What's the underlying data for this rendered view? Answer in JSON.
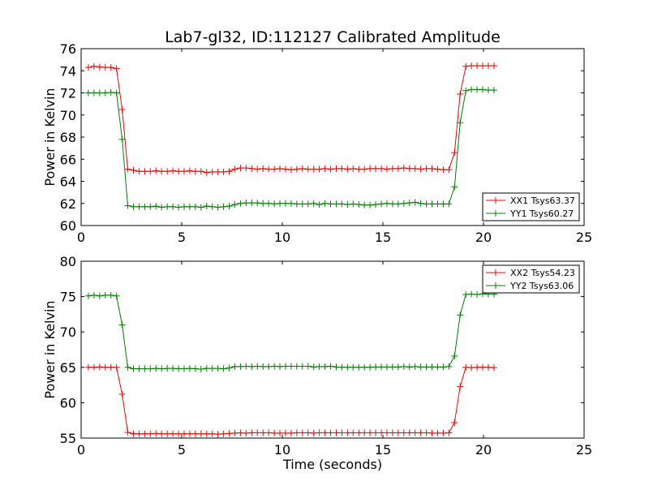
{
  "chart_data": [
    {
      "type": "line",
      "title": "Lab7-gl32, ID:112127 Calibrated Amplitude",
      "xlabel": "",
      "ylabel": "Power in Kelvin",
      "xlim": [
        0,
        25
      ],
      "ylim": [
        60,
        76
      ],
      "xticks": [
        "0",
        "5",
        "10",
        "15",
        "20",
        "25"
      ],
      "yticks": [
        "60",
        "62",
        "64",
        "66",
        "68",
        "70",
        "72",
        "74",
        "76"
      ],
      "grid": false,
      "legend_position": "lower-right",
      "x": [
        0.36,
        0.64,
        0.92,
        1.2,
        1.48,
        1.76,
        2.04,
        2.32,
        2.6,
        2.88,
        3.16,
        3.44,
        3.72,
        4.0,
        4.28,
        4.56,
        4.84,
        5.12,
        5.4,
        5.68,
        5.96,
        6.24,
        6.52,
        6.8,
        7.08,
        7.36,
        7.64,
        7.92,
        8.2,
        8.48,
        8.76,
        9.04,
        9.32,
        9.6,
        9.88,
        10.16,
        10.44,
        10.72,
        11.0,
        11.28,
        11.56,
        11.84,
        12.12,
        12.4,
        12.68,
        12.96,
        13.24,
        13.52,
        13.8,
        14.08,
        14.36,
        14.64,
        14.92,
        15.2,
        15.48,
        15.76,
        16.04,
        16.32,
        16.6,
        16.88,
        17.16,
        17.44,
        17.72,
        18.0,
        18.28,
        18.56,
        18.84,
        19.12,
        19.4,
        19.68,
        19.96,
        20.24,
        20.52
      ],
      "series": [
        {
          "name": "XX1 Tsys63.37",
          "color": "#ff0000",
          "values": [
            74.3,
            74.4,
            74.35,
            74.3,
            74.3,
            74.2,
            70.5,
            65.1,
            65.0,
            64.9,
            64.9,
            64.9,
            64.95,
            64.9,
            64.9,
            64.95,
            64.9,
            64.9,
            64.95,
            64.9,
            64.9,
            64.8,
            64.85,
            64.85,
            64.85,
            64.9,
            65.1,
            65.2,
            65.2,
            65.15,
            65.1,
            65.15,
            65.1,
            65.1,
            65.15,
            65.1,
            65.05,
            65.1,
            65.15,
            65.1,
            65.1,
            65.1,
            65.15,
            65.1,
            65.15,
            65.15,
            65.1,
            65.15,
            65.1,
            65.1,
            65.15,
            65.15,
            65.15,
            65.1,
            65.15,
            65.15,
            65.2,
            65.15,
            65.15,
            65.1,
            65.15,
            65.15,
            65.1,
            65.05,
            65.05,
            66.6,
            71.9,
            74.4,
            74.45,
            74.45,
            74.45,
            74.45,
            74.45
          ]
        },
        {
          "name": "YY1 Tsys60.27",
          "color": "#008000",
          "values": [
            72.0,
            72.0,
            72.0,
            72.0,
            72.05,
            72.0,
            67.8,
            61.8,
            61.7,
            61.7,
            61.7,
            61.7,
            61.75,
            61.65,
            61.7,
            61.7,
            61.65,
            61.7,
            61.7,
            61.7,
            61.65,
            61.75,
            61.7,
            61.65,
            61.7,
            61.75,
            61.9,
            62.0,
            62.05,
            62.05,
            62.05,
            62.0,
            62.0,
            61.95,
            62.0,
            62.0,
            62.0,
            61.95,
            61.95,
            61.95,
            62.0,
            61.9,
            62.0,
            61.95,
            61.95,
            61.95,
            61.9,
            61.95,
            61.9,
            61.85,
            61.85,
            61.9,
            61.95,
            62.0,
            61.95,
            61.95,
            62.0,
            62.05,
            62.1,
            62.0,
            61.95,
            61.95,
            61.95,
            61.95,
            61.95,
            63.5,
            69.3,
            72.2,
            72.3,
            72.3,
            72.3,
            72.25,
            72.25
          ]
        }
      ]
    },
    {
      "type": "line",
      "title": "",
      "xlabel": "Time (seconds)",
      "ylabel": "Power in Kelvin",
      "xlim": [
        0,
        25
      ],
      "ylim": [
        55,
        80
      ],
      "xticks": [
        "0",
        "5",
        "10",
        "15",
        "20",
        "25"
      ],
      "yticks": [
        "55",
        "60",
        "65",
        "70",
        "75",
        "80"
      ],
      "grid": false,
      "legend_position": "upper-right",
      "x": [
        0.36,
        0.64,
        0.92,
        1.2,
        1.48,
        1.76,
        2.04,
        2.32,
        2.6,
        2.88,
        3.16,
        3.44,
        3.72,
        4.0,
        4.28,
        4.56,
        4.84,
        5.12,
        5.4,
        5.68,
        5.96,
        6.24,
        6.52,
        6.8,
        7.08,
        7.36,
        7.64,
        7.92,
        8.2,
        8.48,
        8.76,
        9.04,
        9.32,
        9.6,
        9.88,
        10.16,
        10.44,
        10.72,
        11.0,
        11.28,
        11.56,
        11.84,
        12.12,
        12.4,
        12.68,
        12.96,
        13.24,
        13.52,
        13.8,
        14.08,
        14.36,
        14.64,
        14.92,
        15.2,
        15.48,
        15.76,
        16.04,
        16.32,
        16.6,
        16.88,
        17.16,
        17.44,
        17.72,
        18.0,
        18.28,
        18.56,
        18.84,
        19.12,
        19.4,
        19.68,
        19.96,
        20.24,
        20.52
      ],
      "series": [
        {
          "name": "XX2 Tsys54.23",
          "color": "#ff0000",
          "values": [
            65.0,
            65.0,
            65.05,
            65.0,
            65.0,
            65.0,
            61.2,
            55.8,
            55.6,
            55.6,
            55.6,
            55.6,
            55.65,
            55.6,
            55.6,
            55.6,
            55.6,
            55.6,
            55.6,
            55.6,
            55.6,
            55.6,
            55.6,
            55.55,
            55.6,
            55.65,
            55.7,
            55.75,
            55.7,
            55.75,
            55.75,
            55.75,
            55.75,
            55.7,
            55.7,
            55.7,
            55.7,
            55.75,
            55.75,
            55.75,
            55.7,
            55.75,
            55.75,
            55.75,
            55.75,
            55.75,
            55.75,
            55.75,
            55.75,
            55.75,
            55.75,
            55.75,
            55.75,
            55.75,
            55.75,
            55.75,
            55.75,
            55.75,
            55.75,
            55.75,
            55.75,
            55.7,
            55.7,
            55.7,
            55.75,
            57.2,
            62.3,
            65.0,
            64.95,
            65.0,
            65.0,
            65.0,
            64.95
          ]
        },
        {
          "name": "YY2 Tsys63.06",
          "color": "#008000",
          "values": [
            75.1,
            75.2,
            75.1,
            75.2,
            75.2,
            75.1,
            71.0,
            65.0,
            64.8,
            64.8,
            64.8,
            64.8,
            64.85,
            64.8,
            64.85,
            64.85,
            64.8,
            64.8,
            64.85,
            64.8,
            64.75,
            64.85,
            64.85,
            64.85,
            64.8,
            64.9,
            65.1,
            65.1,
            65.15,
            65.1,
            65.15,
            65.1,
            65.1,
            65.15,
            65.1,
            65.15,
            65.15,
            65.15,
            65.15,
            65.15,
            65.05,
            65.1,
            65.1,
            65.15,
            65.05,
            65.0,
            65.0,
            65.0,
            65.0,
            65.0,
            65.0,
            65.05,
            65.05,
            65.05,
            65.05,
            65.05,
            65.1,
            65.05,
            65.1,
            65.05,
            65.05,
            65.05,
            65.05,
            65.05,
            65.1,
            66.6,
            72.4,
            75.3,
            75.35,
            75.3,
            75.4,
            75.35,
            75.35
          ]
        }
      ]
    }
  ]
}
